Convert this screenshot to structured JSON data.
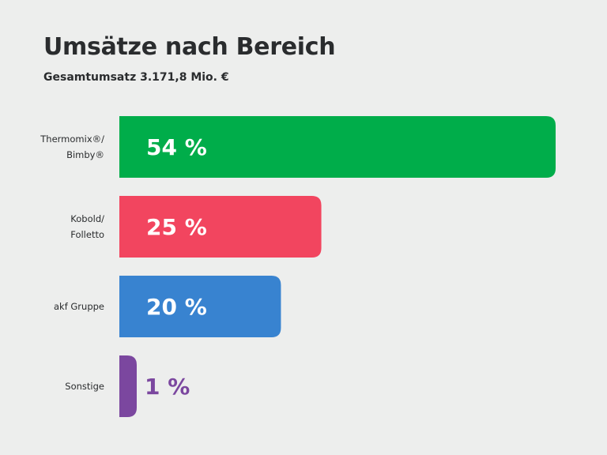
{
  "header": {
    "title": "Umsätze nach Bereich",
    "subtitle": "Gesamtumsatz 3.171,8 Mio. €"
  },
  "chart_data": {
    "type": "bar",
    "orientation": "horizontal",
    "title": "Umsätze nach Bereich",
    "subtitle": "Gesamtumsatz 3.171,8 Mio. €",
    "categories": [
      [
        "Thermomix®/",
        "Bimby®"
      ],
      [
        "Kobold/",
        "Folletto"
      ],
      [
        "akf Gruppe"
      ],
      [
        "Sonstige"
      ]
    ],
    "values": [
      54,
      25,
      20,
      1
    ],
    "value_labels": [
      "54 %",
      "25 %",
      "20 %",
      "1 %"
    ],
    "colors": [
      "#00ad4a",
      "#f2455f",
      "#3883d0",
      "#7b479f"
    ],
    "unit": "%",
    "xlim": [
      0,
      54
    ],
    "xlabel": "",
    "ylabel": "",
    "grid": false,
    "legend": "none"
  }
}
